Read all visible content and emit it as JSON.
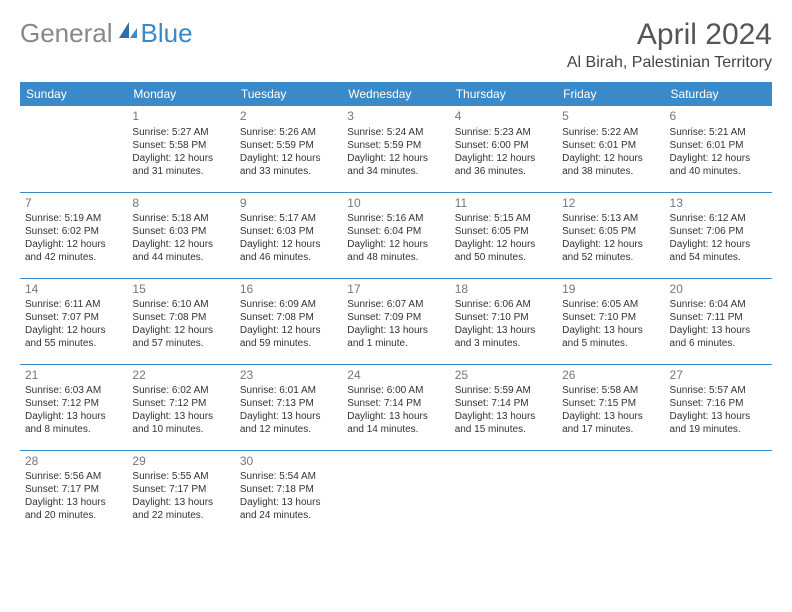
{
  "brand": {
    "part1": "General",
    "part2": "Blue"
  },
  "title": "April 2024",
  "location": "Al Birah, Palestinian Territory",
  "colors": {
    "accent": "#3a8ac9",
    "text": "#333333",
    "muted": "#777777",
    "bg": "#ffffff"
  },
  "weekdays": [
    "Sunday",
    "Monday",
    "Tuesday",
    "Wednesday",
    "Thursday",
    "Friday",
    "Saturday"
  ],
  "startOffset": 1,
  "days": [
    {
      "n": "1",
      "sr": "Sunrise: 5:27 AM",
      "ss": "Sunset: 5:58 PM",
      "dl": "Daylight: 12 hours and 31 minutes."
    },
    {
      "n": "2",
      "sr": "Sunrise: 5:26 AM",
      "ss": "Sunset: 5:59 PM",
      "dl": "Daylight: 12 hours and 33 minutes."
    },
    {
      "n": "3",
      "sr": "Sunrise: 5:24 AM",
      "ss": "Sunset: 5:59 PM",
      "dl": "Daylight: 12 hours and 34 minutes."
    },
    {
      "n": "4",
      "sr": "Sunrise: 5:23 AM",
      "ss": "Sunset: 6:00 PM",
      "dl": "Daylight: 12 hours and 36 minutes."
    },
    {
      "n": "5",
      "sr": "Sunrise: 5:22 AM",
      "ss": "Sunset: 6:01 PM",
      "dl": "Daylight: 12 hours and 38 minutes."
    },
    {
      "n": "6",
      "sr": "Sunrise: 5:21 AM",
      "ss": "Sunset: 6:01 PM",
      "dl": "Daylight: 12 hours and 40 minutes."
    },
    {
      "n": "7",
      "sr": "Sunrise: 5:19 AM",
      "ss": "Sunset: 6:02 PM",
      "dl": "Daylight: 12 hours and 42 minutes."
    },
    {
      "n": "8",
      "sr": "Sunrise: 5:18 AM",
      "ss": "Sunset: 6:03 PM",
      "dl": "Daylight: 12 hours and 44 minutes."
    },
    {
      "n": "9",
      "sr": "Sunrise: 5:17 AM",
      "ss": "Sunset: 6:03 PM",
      "dl": "Daylight: 12 hours and 46 minutes."
    },
    {
      "n": "10",
      "sr": "Sunrise: 5:16 AM",
      "ss": "Sunset: 6:04 PM",
      "dl": "Daylight: 12 hours and 48 minutes."
    },
    {
      "n": "11",
      "sr": "Sunrise: 5:15 AM",
      "ss": "Sunset: 6:05 PM",
      "dl": "Daylight: 12 hours and 50 minutes."
    },
    {
      "n": "12",
      "sr": "Sunrise: 5:13 AM",
      "ss": "Sunset: 6:05 PM",
      "dl": "Daylight: 12 hours and 52 minutes."
    },
    {
      "n": "13",
      "sr": "Sunrise: 6:12 AM",
      "ss": "Sunset: 7:06 PM",
      "dl": "Daylight: 12 hours and 54 minutes."
    },
    {
      "n": "14",
      "sr": "Sunrise: 6:11 AM",
      "ss": "Sunset: 7:07 PM",
      "dl": "Daylight: 12 hours and 55 minutes."
    },
    {
      "n": "15",
      "sr": "Sunrise: 6:10 AM",
      "ss": "Sunset: 7:08 PM",
      "dl": "Daylight: 12 hours and 57 minutes."
    },
    {
      "n": "16",
      "sr": "Sunrise: 6:09 AM",
      "ss": "Sunset: 7:08 PM",
      "dl": "Daylight: 12 hours and 59 minutes."
    },
    {
      "n": "17",
      "sr": "Sunrise: 6:07 AM",
      "ss": "Sunset: 7:09 PM",
      "dl": "Daylight: 13 hours and 1 minute."
    },
    {
      "n": "18",
      "sr": "Sunrise: 6:06 AM",
      "ss": "Sunset: 7:10 PM",
      "dl": "Daylight: 13 hours and 3 minutes."
    },
    {
      "n": "19",
      "sr": "Sunrise: 6:05 AM",
      "ss": "Sunset: 7:10 PM",
      "dl": "Daylight: 13 hours and 5 minutes."
    },
    {
      "n": "20",
      "sr": "Sunrise: 6:04 AM",
      "ss": "Sunset: 7:11 PM",
      "dl": "Daylight: 13 hours and 6 minutes."
    },
    {
      "n": "21",
      "sr": "Sunrise: 6:03 AM",
      "ss": "Sunset: 7:12 PM",
      "dl": "Daylight: 13 hours and 8 minutes."
    },
    {
      "n": "22",
      "sr": "Sunrise: 6:02 AM",
      "ss": "Sunset: 7:12 PM",
      "dl": "Daylight: 13 hours and 10 minutes."
    },
    {
      "n": "23",
      "sr": "Sunrise: 6:01 AM",
      "ss": "Sunset: 7:13 PM",
      "dl": "Daylight: 13 hours and 12 minutes."
    },
    {
      "n": "24",
      "sr": "Sunrise: 6:00 AM",
      "ss": "Sunset: 7:14 PM",
      "dl": "Daylight: 13 hours and 14 minutes."
    },
    {
      "n": "25",
      "sr": "Sunrise: 5:59 AM",
      "ss": "Sunset: 7:14 PM",
      "dl": "Daylight: 13 hours and 15 minutes."
    },
    {
      "n": "26",
      "sr": "Sunrise: 5:58 AM",
      "ss": "Sunset: 7:15 PM",
      "dl": "Daylight: 13 hours and 17 minutes."
    },
    {
      "n": "27",
      "sr": "Sunrise: 5:57 AM",
      "ss": "Sunset: 7:16 PM",
      "dl": "Daylight: 13 hours and 19 minutes."
    },
    {
      "n": "28",
      "sr": "Sunrise: 5:56 AM",
      "ss": "Sunset: 7:17 PM",
      "dl": "Daylight: 13 hours and 20 minutes."
    },
    {
      "n": "29",
      "sr": "Sunrise: 5:55 AM",
      "ss": "Sunset: 7:17 PM",
      "dl": "Daylight: 13 hours and 22 minutes."
    },
    {
      "n": "30",
      "sr": "Sunrise: 5:54 AM",
      "ss": "Sunset: 7:18 PM",
      "dl": "Daylight: 13 hours and 24 minutes."
    }
  ]
}
